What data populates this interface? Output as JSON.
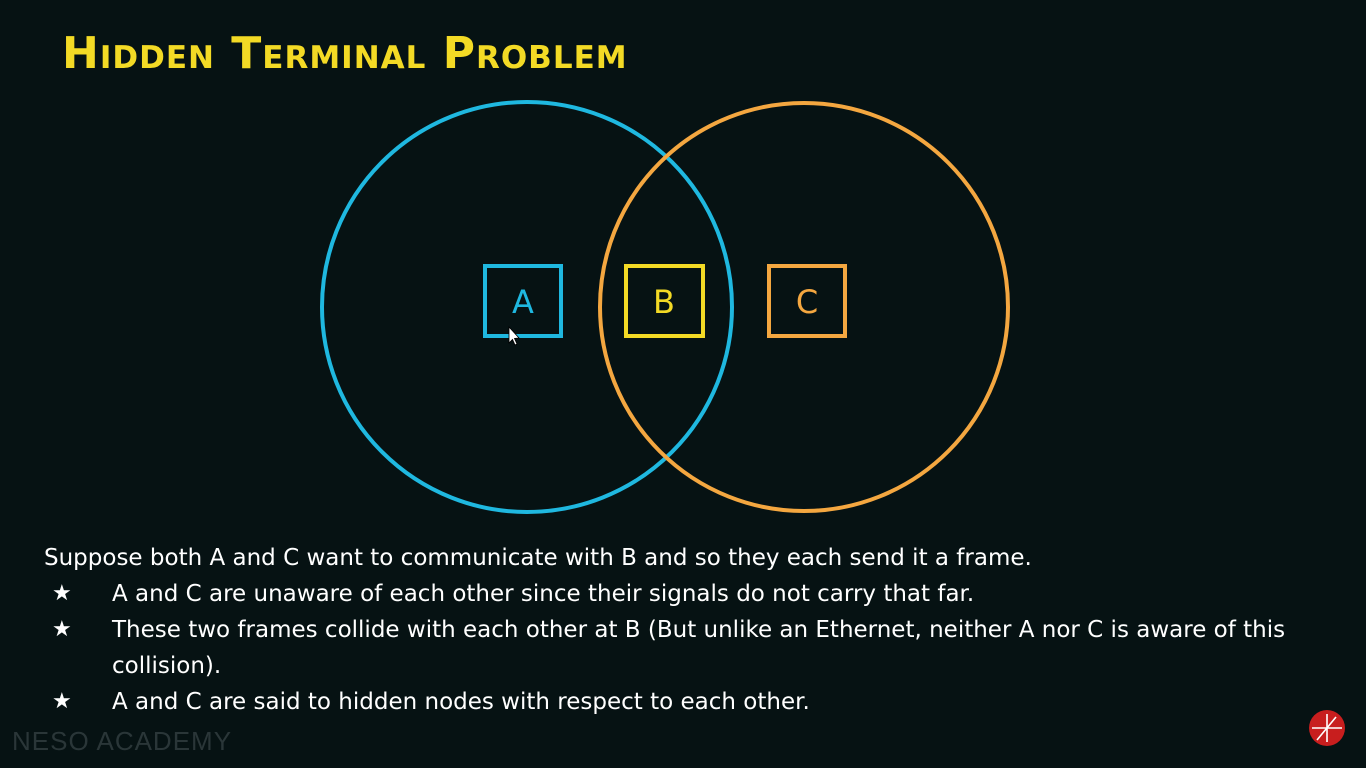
{
  "title": "Hidden Terminal Problem",
  "diagram": {
    "colors": {
      "a": "#1fb8e0",
      "b": "#f3da25",
      "c": "#f4a740"
    },
    "nodes": [
      {
        "id": "a",
        "label": "A"
      },
      {
        "id": "b",
        "label": "B"
      },
      {
        "id": "c",
        "label": "C"
      }
    ]
  },
  "body": {
    "intro": "Suppose both A and C want to communicate with B and so they each send it a frame.",
    "bullets": [
      "A and C are unaware of each other since their signals do not carry that far.",
      "These two frames collide with each other at B (But unlike an Ethernet, neither A nor C is aware of this collision).",
      "A and C are said to hidden nodes with respect to each other."
    ],
    "bullet_icon": "star-icon"
  },
  "watermark": "NESO ACADEMY",
  "logo_icon": "neso-logo-icon"
}
